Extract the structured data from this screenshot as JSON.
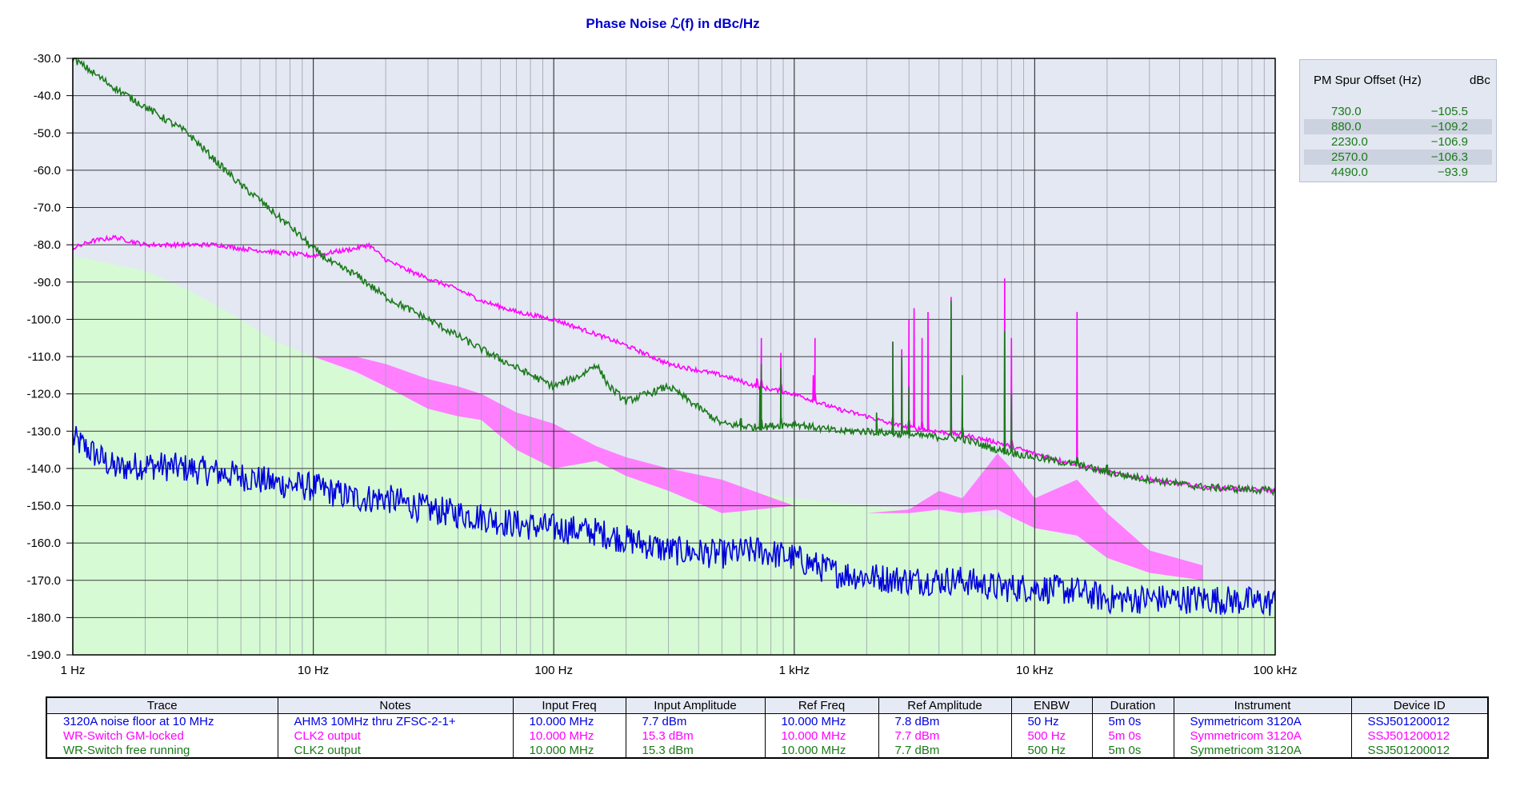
{
  "chart_data": {
    "type": "line",
    "title": "Phase Noise ℒ(f) in dBc/Hz",
    "xscale": "log",
    "xlim": [
      1,
      100000
    ],
    "ylim": [
      -190,
      -30
    ],
    "yticks": [
      "-30.0",
      "-40.0",
      "-50.0",
      "-60.0",
      "-70.0",
      "-80.0",
      "-90.0",
      "-100.0",
      "-110.0",
      "-120.0",
      "-130.0",
      "-140.0",
      "-150.0",
      "-160.0",
      "-170.0",
      "-180.0",
      "-190.0"
    ],
    "ytick_values": [
      -30,
      -40,
      -50,
      -60,
      -70,
      -80,
      -90,
      -100,
      -110,
      -120,
      -130,
      -140,
      -150,
      -160,
      -170,
      -180,
      -190
    ],
    "xticks": [
      "1 Hz",
      "10 Hz",
      "100 Hz",
      "1 kHz",
      "10 kHz",
      "100 kHz"
    ],
    "xtick_values": [
      1,
      10,
      100,
      1000,
      10000,
      100000
    ],
    "grid": true,
    "series": [
      {
        "name": "3120A noise floor at 10 MHz",
        "color": "#0000dd",
        "x": [
          1,
          1.5,
          2,
          3,
          5,
          7,
          10,
          15,
          20,
          30,
          50,
          70,
          100,
          150,
          200,
          300,
          500,
          700,
          1000,
          1500,
          2000,
          3000,
          5000,
          7000,
          10000,
          15000,
          20000,
          30000,
          50000,
          100000
        ],
        "y": [
          -132,
          -140,
          -139,
          -140,
          -142,
          -144,
          -145,
          -148,
          -148,
          -151,
          -153,
          -155,
          -156,
          -157,
          -159,
          -162,
          -163,
          -162,
          -164,
          -168,
          -169,
          -170,
          -170,
          -172,
          -172,
          -173,
          -175,
          -175,
          -175,
          -176
        ],
        "noise": 4
      },
      {
        "name": "WR-Switch GM-locked",
        "color": "#ff00ff",
        "x": [
          1,
          1.2,
          1.5,
          2,
          3,
          4,
          5,
          7,
          10,
          12,
          15,
          17,
          20,
          25,
          30,
          40,
          50,
          70,
          100,
          150,
          200,
          300,
          500,
          700,
          1000,
          1500,
          2000,
          2500,
          3000,
          5000,
          7000,
          10000,
          15000,
          20000,
          30000,
          50000,
          100000
        ],
        "y": [
          -81,
          -79,
          -78,
          -80,
          -80,
          -80,
          -81,
          -82,
          -83,
          -82,
          -81,
          -80,
          -84,
          -87,
          -89,
          -92,
          -95,
          -98,
          -100,
          -104,
          -107,
          -112,
          -115,
          -118,
          -120,
          -124,
          -126,
          -128,
          -129,
          -131,
          -133,
          -136,
          -139,
          -141,
          -143,
          -145,
          -146
        ],
        "noise": 0.6,
        "spurs": [
          [
            700,
            -116
          ],
          [
            730,
            -105
          ],
          [
            880,
            -109
          ],
          [
            1200,
            -115
          ],
          [
            1220,
            -105
          ],
          [
            2570,
            -106
          ],
          [
            2800,
            -108
          ],
          [
            3000,
            -100
          ],
          [
            3150,
            -97
          ],
          [
            3400,
            -105
          ],
          [
            3600,
            -98
          ],
          [
            4490,
            -94
          ],
          [
            5000,
            -120
          ],
          [
            7500,
            -89
          ],
          [
            8000,
            -105
          ],
          [
            15000,
            -98
          ]
        ]
      },
      {
        "name": "WR-Switch free running",
        "color": "#1a7a1a",
        "x": [
          1,
          1.5,
          2,
          3,
          4,
          5,
          6,
          7,
          8,
          10,
          12,
          15,
          20,
          30,
          50,
          70,
          100,
          130,
          150,
          170,
          200,
          300,
          500,
          700,
          1000,
          1500,
          2000,
          3000,
          5000,
          7000,
          10000,
          15000,
          20000,
          30000,
          50000,
          100000
        ],
        "y": [
          -30,
          -38,
          -43,
          -50,
          -58,
          -64,
          -68,
          -72,
          -75,
          -81,
          -85,
          -88,
          -94,
          -100,
          -108,
          -113,
          -118,
          -115,
          -112,
          -118,
          -122,
          -118,
          -128,
          -129,
          -128,
          -130,
          -130,
          -131,
          -132,
          -135,
          -137,
          -139,
          -141,
          -143,
          -145,
          -146
        ],
        "noise": 1.0,
        "spurs": [
          [
            600,
            -130
          ],
          [
            720,
            -118
          ],
          [
            730,
            -112
          ],
          [
            880,
            -113
          ],
          [
            2200,
            -125
          ],
          [
            2570,
            -106
          ],
          [
            2800,
            -110
          ],
          [
            3000,
            -118
          ],
          [
            4490,
            -95
          ],
          [
            5000,
            -115
          ],
          [
            7500,
            -103
          ],
          [
            8000,
            -120
          ],
          [
            15000,
            -138
          ],
          [
            20000,
            -141
          ]
        ]
      }
    ],
    "fills": [
      {
        "name": "spurious free region",
        "color": "#d6fad4",
        "x": [
          1,
          2,
          3,
          5,
          7,
          10,
          20,
          30,
          50,
          100,
          200,
          500,
          1000,
          2000,
          3000,
          5000,
          7000,
          10000,
          15000,
          20000,
          30000,
          50000,
          100000
        ],
        "y": [
          -83,
          -87,
          -92,
          -100,
          -106,
          -110,
          -118,
          -121,
          -126,
          -134,
          -139,
          -145,
          -148,
          -150,
          -151,
          -152,
          -153,
          -155,
          -159,
          -163,
          -168,
          -170,
          -174
        ]
      },
      {
        "name": "GM-locked envelope",
        "color": "#ff7fff",
        "x": [
          10,
          15,
          20,
          30,
          40,
          50,
          70,
          100,
          150,
          200,
          300,
          500,
          1000,
          1500,
          2000,
          3000,
          4000,
          5000,
          7000,
          8000,
          10000,
          15000,
          20000,
          30000,
          50000
        ],
        "upper": [
          -110,
          -110,
          -112,
          -116,
          -118,
          -120,
          -125,
          -128,
          -134,
          -137,
          -140,
          -143,
          -150,
          -152,
          -152,
          -151,
          -146,
          -148,
          -136,
          -140,
          -148,
          -143,
          -152,
          -162,
          -166
        ],
        "lower": [
          -110,
          -114,
          -118,
          -124,
          -126,
          -127,
          -135,
          -140,
          -138,
          -142,
          -146,
          -152,
          -150,
          -152,
          -152,
          -152,
          -151,
          -152,
          -151,
          -153,
          -156,
          -158,
          -164,
          -168,
          -170
        ]
      }
    ]
  },
  "spur_table": {
    "headers": [
      "PM Spur Offset (Hz)",
      "dBc"
    ],
    "rows": [
      {
        "offset": "730.0",
        "dbc": "−105.5"
      },
      {
        "offset": "880.0",
        "dbc": "−109.2"
      },
      {
        "offset": "2230.0",
        "dbc": "−106.9"
      },
      {
        "offset": "2570.0",
        "dbc": "−106.3"
      },
      {
        "offset": "4490.0",
        "dbc": "−93.9"
      }
    ]
  },
  "trace_table": {
    "headers": [
      "Trace",
      "Notes",
      "Input Freq",
      "Input Amplitude",
      "Ref Freq",
      "Ref Amplitude",
      "ENBW",
      "Duration",
      "Instrument",
      "Device ID"
    ],
    "rows": [
      {
        "color": "#0000dd",
        "cells": [
          "3120A noise floor at 10 MHz",
          "AHM3 10MHz thru ZFSC-2-1+",
          "10.000 MHz",
          "7.7 dBm",
          "10.000 MHz",
          "7.8 dBm",
          "50 Hz",
          "5m 0s",
          "Symmetricom 3120A",
          "SSJ501200012"
        ]
      },
      {
        "color": "#ff00ff",
        "cells": [
          "WR-Switch GM-locked",
          "CLK2 output",
          "10.000 MHz",
          "15.3 dBm",
          "10.000 MHz",
          "7.7 dBm",
          "500 Hz",
          "5m 0s",
          "Symmetricom 3120A",
          "SSJ501200012"
        ]
      },
      {
        "color": "#1a7a1a",
        "cells": [
          "WR-Switch free running",
          "CLK2 output",
          "10.000 MHz",
          "15.3 dBm",
          "10.000 MHz",
          "7.7 dBm",
          "500 Hz",
          "5m 0s",
          "Symmetricom 3120A",
          "SSJ501200012"
        ]
      }
    ]
  }
}
